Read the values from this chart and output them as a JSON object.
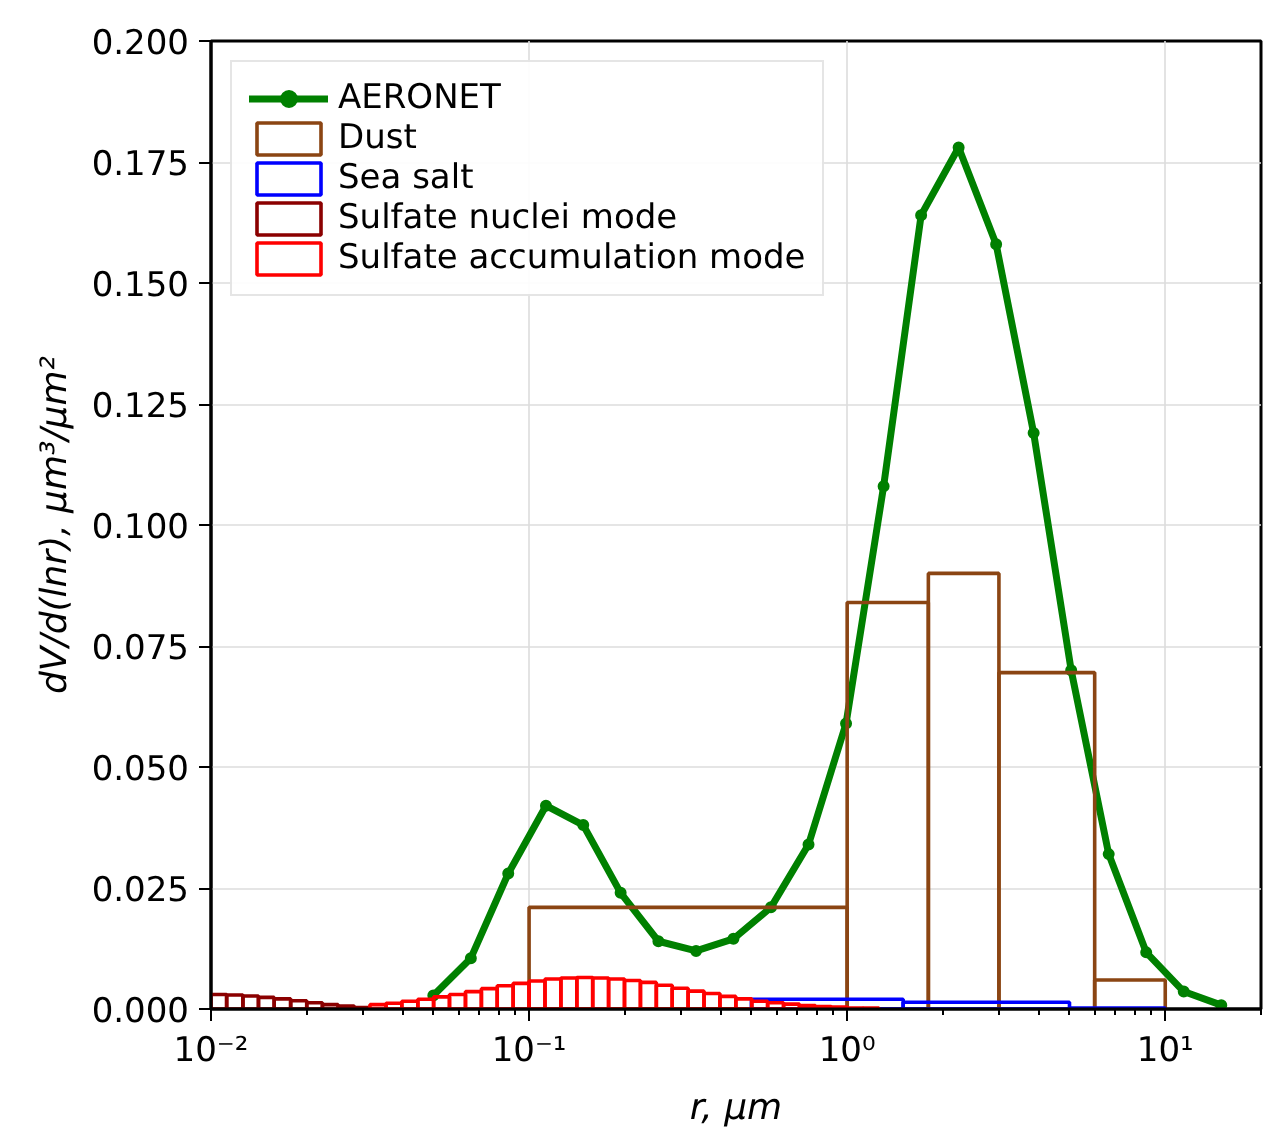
{
  "chart_data": {
    "type": "line",
    "xlabel": "r, μm",
    "ylabel": "dV/d(lnr), μm³/μm²",
    "log": "x",
    "grid": true,
    "legend": "top left",
    "xlim": [
      0.01,
      20
    ],
    "xticks": [
      {
        "value": 0.01,
        "label": "10⁻²"
      },
      {
        "value": 0.1,
        "label": "10⁻¹"
      },
      {
        "value": 1,
        "label": "10⁰"
      },
      {
        "value": 10,
        "label": "10¹"
      }
    ],
    "ylim": [
      0,
      0.2
    ],
    "yticks": [
      {
        "value": 0,
        "label": "0.000"
      },
      {
        "value": 0.025,
        "label": "0.025"
      },
      {
        "value": 0.05,
        "label": "0.050"
      },
      {
        "value": 0.075,
        "label": "0.075"
      },
      {
        "value": 0.1,
        "label": "0.100"
      },
      {
        "value": 0.125,
        "label": "0.125"
      },
      {
        "value": 0.15,
        "label": "0.150"
      },
      {
        "value": 0.175,
        "label": "0.175"
      },
      {
        "value": 0.2,
        "label": "0.200"
      }
    ],
    "series": [
      {
        "name": "AERONET",
        "marker": "circle",
        "color": "#008000",
        "x": [
          0.05,
          0.0656,
          0.086,
          0.113,
          0.148,
          0.194,
          0.255,
          0.335,
          0.439,
          0.576,
          0.756,
          0.992,
          1.302,
          1.708,
          2.241,
          2.94,
          3.857,
          5.061,
          6.641,
          8.713,
          11.432,
          15.0
        ],
        "values": [
          0.0028,
          0.0105,
          0.028,
          0.042,
          0.038,
          0.024,
          0.014,
          0.012,
          0.0145,
          0.021,
          0.034,
          0.059,
          0.108,
          0.164,
          0.178,
          0.158,
          0.119,
          0.07,
          0.032,
          0.0117,
          0.0036,
          0.0008
        ]
      },
      {
        "name": "Dust",
        "type": "histogram",
        "color": "#8b4513",
        "bins": [
          0.1,
          1.0,
          1.8,
          3.0,
          6.0,
          10.0
        ],
        "values": [
          0.021,
          0.084,
          0.09,
          0.0695,
          0.006
        ]
      },
      {
        "name": "Sea salt",
        "type": "histogram",
        "color": "#0000ff",
        "bins": [
          0.5,
          1.5,
          5.0,
          10.0
        ],
        "values": [
          0.002,
          0.0014,
          0.0002
        ]
      },
      {
        "name": "Sulfate nuclei mode",
        "type": "histogram",
        "color": "#8b0000",
        "bins": [
          0.01,
          0.0112,
          0.0126,
          0.0141,
          0.0158,
          0.0178,
          0.02,
          0.0224,
          0.0251,
          0.0282,
          0.0316
        ],
        "values": [
          0.003,
          0.0029,
          0.0027,
          0.0024,
          0.0021,
          0.0017,
          0.0013,
          0.0009,
          0.0006,
          0.0003
        ]
      },
      {
        "name": "Sulfate accumulation mode",
        "type": "histogram",
        "color": "#ff0000",
        "bins": [
          0.0316,
          0.0355,
          0.0398,
          0.0447,
          0.0501,
          0.0562,
          0.0631,
          0.0708,
          0.0794,
          0.0891,
          0.1,
          0.1122,
          0.1259,
          0.1413,
          0.1585,
          0.1778,
          0.1995,
          0.2239,
          0.2512,
          0.2818,
          0.3162,
          0.3548,
          0.3981,
          0.4467,
          0.5012,
          0.5623,
          0.631,
          0.7079,
          0.7943,
          0.8913,
          1.0,
          1.122,
          1.259
        ],
        "values": [
          0.0009,
          0.0012,
          0.0016,
          0.002,
          0.0025,
          0.003,
          0.0036,
          0.0042,
          0.0048,
          0.0053,
          0.0058,
          0.0062,
          0.0064,
          0.0065,
          0.0064,
          0.0062,
          0.0059,
          0.0055,
          0.0049,
          0.0043,
          0.0037,
          0.0032,
          0.0026,
          0.0021,
          0.0016,
          0.0013,
          0.001,
          0.0007,
          0.0005,
          0.0004,
          0.0002,
          0.0002
        ]
      }
    ]
  }
}
